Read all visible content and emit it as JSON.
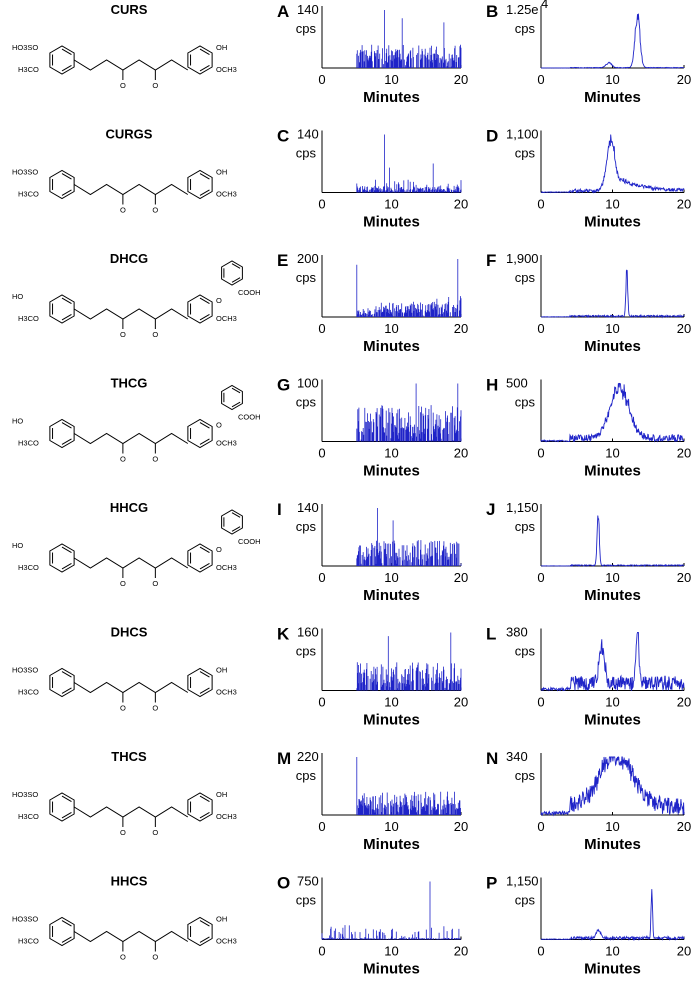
{
  "compounds": [
    {
      "name": "CURS",
      "left": {
        "letter": "A",
        "ymax": 140
      },
      "right": {
        "letter": "B",
        "ymax_label": "1.25e",
        "ymax_sup": "4"
      }
    },
    {
      "name": "CURGS",
      "left": {
        "letter": "C",
        "ymax": 140
      },
      "right": {
        "letter": "D",
        "ymax_label": "1,100"
      }
    },
    {
      "name": "DHCG",
      "left": {
        "letter": "E",
        "ymax": 200
      },
      "right": {
        "letter": "F",
        "ymax_label": "1,900"
      }
    },
    {
      "name": "THCG",
      "left": {
        "letter": "G",
        "ymax": 100
      },
      "right": {
        "letter": "H",
        "ymax_label": "500"
      }
    },
    {
      "name": "HHCG",
      "left": {
        "letter": "I",
        "ymax": 140
      },
      "right": {
        "letter": "J",
        "ymax_label": "1,150"
      }
    },
    {
      "name": "DHCS",
      "left": {
        "letter": "K",
        "ymax": 160
      },
      "right": {
        "letter": "L",
        "ymax_label": "380"
      }
    },
    {
      "name": "THCS",
      "left": {
        "letter": "M",
        "ymax": 220
      },
      "right": {
        "letter": "N",
        "ymax_label": "340"
      }
    },
    {
      "name": "HHCS",
      "left": {
        "letter": "O",
        "ymax": 750
      },
      "right": {
        "letter": "P",
        "ymax_label": "1,150"
      }
    }
  ],
  "structure_labels": {
    "sulfate": "HO3SO",
    "hydroxyl": "OH",
    "methoxy_left": "H3CO",
    "methoxy_right": "OCH3",
    "ketone": "O",
    "carboxyl": "COOH",
    "ring_oh": "OH",
    "ho": "HO",
    "ring_o": "O"
  },
  "chart_data": {
    "type": "line",
    "description_panels": "A-P",
    "xlabel": "Minutes",
    "ylabel": "cps",
    "xlim": [
      0,
      20
    ],
    "xticks": [
      0,
      10,
      20
    ],
    "line_color": "#1f24c8",
    "panels": [
      {
        "letter": "A",
        "ymax": 140,
        "baseline_start": 5,
        "peaks": [
          {
            "x": 9.0,
            "y": 140
          },
          {
            "x": 11.5,
            "y": 120
          },
          {
            "x": 17.5,
            "y": 110
          }
        ],
        "noise": 0.45
      },
      {
        "letter": "B",
        "ymax": 12500,
        "ymax_label": "1.25e4",
        "peaks": [
          {
            "x": 13.5,
            "y": 12500,
            "w": 0.35
          },
          {
            "x": 9.5,
            "y": 1200,
            "w": 0.4
          }
        ],
        "noise": 0.01
      },
      {
        "letter": "C",
        "ymax": 140,
        "baseline_start": 5,
        "peaks": [
          {
            "x": 9.0,
            "y": 140
          },
          {
            "x": 16.0,
            "y": 70
          },
          {
            "x": 9.7,
            "y": 60
          }
        ],
        "noise": 0.12
      },
      {
        "letter": "D",
        "ymax": 1100,
        "peaks": [
          {
            "x": 9.8,
            "y": 1100,
            "w": 0.6
          }
        ],
        "tail": 0.35,
        "noise": 0.06
      },
      {
        "letter": "E",
        "ymax": 200,
        "baseline_start": 5,
        "peaks": [
          {
            "x": 5.0,
            "y": 180
          },
          {
            "x": 19.5,
            "y": 200
          }
        ],
        "trend": 0.8,
        "noise": 0.35
      },
      {
        "letter": "F",
        "ymax": 1900,
        "peaks": [
          {
            "x": 12.0,
            "y": 1900,
            "w": 0.12
          }
        ],
        "noise": 0.03
      },
      {
        "letter": "G",
        "ymax": 100,
        "baseline_start": 5,
        "peaks": [
          {
            "x": 19.5,
            "y": 100
          },
          {
            "x": 13.5,
            "y": 100
          }
        ],
        "noise": 0.7
      },
      {
        "letter": "H",
        "ymax": 500,
        "peaks": [
          {
            "x": 11.0,
            "y": 500,
            "w": 1.3
          }
        ],
        "noise": 0.12
      },
      {
        "letter": "I",
        "ymax": 140,
        "baseline_start": 5,
        "peaks": [
          {
            "x": 8.0,
            "y": 140
          },
          {
            "x": 10.2,
            "y": 110
          }
        ],
        "noise": 0.5
      },
      {
        "letter": "J",
        "ymax": 1150,
        "peaks": [
          {
            "x": 8.0,
            "y": 1150,
            "w": 0.15
          }
        ],
        "noise": 0.02
      },
      {
        "letter": "K",
        "ymax": 160,
        "baseline_start": 5,
        "peaks": [
          {
            "x": 9.5,
            "y": 150
          },
          {
            "x": 18.5,
            "y": 160
          }
        ],
        "noise": 0.55
      },
      {
        "letter": "L",
        "ymax": 380,
        "peaks": [
          {
            "x": 13.5,
            "y": 380,
            "w": 0.2
          },
          {
            "x": 8.5,
            "y": 260,
            "w": 0.4
          }
        ],
        "noise": 0.25
      },
      {
        "letter": "M",
        "ymax": 220,
        "baseline_start": 5,
        "peaks": [
          {
            "x": 5.0,
            "y": 220
          }
        ],
        "noise": 0.45
      },
      {
        "letter": "N",
        "ymax": 340,
        "peaks": [
          {
            "x": 10.5,
            "y": 340,
            "w": 2.3
          }
        ],
        "noise": 0.3
      },
      {
        "letter": "O",
        "ymax": 750,
        "peaks": [
          {
            "x": 15.5,
            "y": 750,
            "w": 0.1
          }
        ],
        "noise": 0.03
      },
      {
        "letter": "P",
        "ymax": 1150,
        "peaks": [
          {
            "x": 15.5,
            "y": 1150,
            "w": 0.1
          },
          {
            "x": 8.0,
            "y": 180,
            "w": 0.3
          }
        ],
        "noise": 0.05
      }
    ]
  }
}
